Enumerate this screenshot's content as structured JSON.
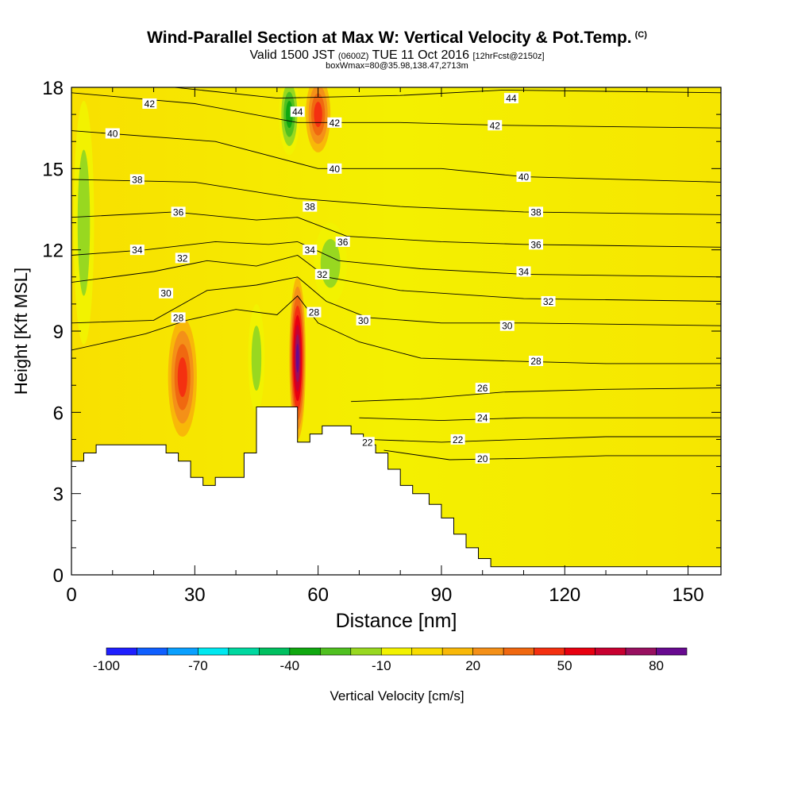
{
  "header": {
    "title": "Wind-Parallel Section at Max W: Vertical Velocity & Pot.Temp.",
    "copyright": "(C)",
    "valid_prefix": "Valid 1500 JST",
    "valid_utc": "(0600Z)",
    "valid_date": "TUE 11 Oct 2016",
    "forecast": "[12hrFcst@2150z]",
    "box_info": "boxWmax=80@35.98,138.47,2713m"
  },
  "chart_data": {
    "type": "heatmap",
    "xlabel": "Distance [nm]",
    "ylabel": "Height [Kft MSL]",
    "xlim": [
      0,
      158
    ],
    "ylim": [
      0,
      18
    ],
    "x_ticks": [
      0,
      30,
      60,
      90,
      120,
      150
    ],
    "y_ticks": [
      0,
      3,
      6,
      9,
      12,
      15,
      18
    ],
    "colorbar": {
      "label": "Vertical Velocity [cm/s]",
      "tick_labels": [
        -100,
        -70,
        -40,
        -10,
        20,
        50,
        80
      ],
      "levels": [
        -100,
        -90,
        -80,
        -70,
        -60,
        -50,
        -40,
        -30,
        -20,
        -10,
        0,
        10,
        20,
        30,
        40,
        50,
        60,
        70,
        80,
        90
      ],
      "colors": [
        "#1f1fff",
        "#0f5fff",
        "#0aa0ff",
        "#00e8f0",
        "#00d8a0",
        "#00c060",
        "#10a810",
        "#50c020",
        "#98d820",
        "#f2f200",
        "#f8dc00",
        "#f8b808",
        "#f49018",
        "#f06810",
        "#f43010",
        "#e80010",
        "#c80030",
        "#981060",
        "#680a90"
      ]
    },
    "terrain_kft": [
      [
        0,
        4.2
      ],
      [
        3,
        4.2
      ],
      [
        3,
        4.5
      ],
      [
        6,
        4.5
      ],
      [
        6,
        4.8
      ],
      [
        23,
        4.8
      ],
      [
        23,
        4.5
      ],
      [
        26,
        4.5
      ],
      [
        26,
        4.2
      ],
      [
        29,
        4.2
      ],
      [
        29,
        3.6
      ],
      [
        32,
        3.6
      ],
      [
        32,
        3.3
      ],
      [
        35,
        3.3
      ],
      [
        35,
        3.6
      ],
      [
        42,
        3.6
      ],
      [
        42,
        4.5
      ],
      [
        45,
        4.5
      ],
      [
        45,
        6.2
      ],
      [
        55,
        6.2
      ],
      [
        55,
        4.9
      ],
      [
        58,
        4.9
      ],
      [
        58,
        5.2
      ],
      [
        61,
        5.2
      ],
      [
        61,
        5.5
      ],
      [
        68,
        5.5
      ],
      [
        68,
        5.2
      ],
      [
        71,
        5.2
      ],
      [
        71,
        4.8
      ],
      [
        74,
        4.8
      ],
      [
        74,
        4.5
      ],
      [
        77,
        4.5
      ],
      [
        77,
        3.9
      ],
      [
        80,
        3.9
      ],
      [
        80,
        3.3
      ],
      [
        83,
        3.3
      ],
      [
        83,
        3.0
      ],
      [
        87,
        3.0
      ],
      [
        87,
        2.6
      ],
      [
        90,
        2.6
      ],
      [
        90,
        2.1
      ],
      [
        93,
        2.1
      ],
      [
        93,
        1.5
      ],
      [
        96,
        1.5
      ],
      [
        96,
        1.0
      ],
      [
        99,
        1.0
      ],
      [
        99,
        0.6
      ],
      [
        102,
        0.6
      ],
      [
        102,
        0.3
      ],
      [
        158,
        0.3
      ]
    ],
    "isentropes": [
      {
        "label": "20",
        "points": [
          [
            76,
            4.6
          ],
          [
            92,
            4.25
          ],
          [
            110,
            4.3
          ],
          [
            130,
            4.4
          ],
          [
            158,
            4.4
          ]
        ]
      },
      {
        "label": "22",
        "points": [
          [
            72,
            5.0
          ],
          [
            90,
            4.9
          ],
          [
            110,
            5.0
          ],
          [
            130,
            5.1
          ],
          [
            158,
            5.1
          ]
        ]
      },
      {
        "label": "24",
        "points": [
          [
            70,
            5.8
          ],
          [
            90,
            5.7
          ],
          [
            110,
            5.8
          ],
          [
            158,
            5.8
          ]
        ]
      },
      {
        "label": "26",
        "points": [
          [
            68,
            6.4
          ],
          [
            85,
            6.5
          ],
          [
            105,
            6.75
          ],
          [
            130,
            6.85
          ],
          [
            158,
            6.9
          ]
        ]
      },
      {
        "label": "28",
        "points": [
          [
            0,
            8.3
          ],
          [
            18,
            8.9
          ],
          [
            28,
            9.4
          ],
          [
            40,
            9.8
          ],
          [
            50,
            9.6
          ],
          [
            55,
            10.3
          ],
          [
            60,
            9.3
          ],
          [
            70,
            8.6
          ],
          [
            85,
            8.0
          ],
          [
            105,
            7.9
          ],
          [
            130,
            7.8
          ],
          [
            158,
            7.8
          ]
        ]
      },
      {
        "label": "30",
        "points": [
          [
            0,
            9.3
          ],
          [
            20,
            9.4
          ],
          [
            33,
            10.5
          ],
          [
            45,
            10.7
          ],
          [
            55,
            11.0
          ],
          [
            62,
            10.1
          ],
          [
            72,
            9.5
          ],
          [
            90,
            9.3
          ],
          [
            110,
            9.3
          ],
          [
            158,
            9.2
          ]
        ]
      },
      {
        "label": "32",
        "points": [
          [
            0,
            10.8
          ],
          [
            20,
            11.2
          ],
          [
            33,
            11.6
          ],
          [
            45,
            11.4
          ],
          [
            55,
            11.8
          ],
          [
            62,
            11.0
          ],
          [
            80,
            10.5
          ],
          [
            110,
            10.2
          ],
          [
            158,
            10.1
          ]
        ]
      },
      {
        "label": "34",
        "points": [
          [
            0,
            11.8
          ],
          [
            18,
            12.0
          ],
          [
            35,
            12.3
          ],
          [
            48,
            12.2
          ],
          [
            55,
            12.3
          ],
          [
            65,
            11.6
          ],
          [
            85,
            11.3
          ],
          [
            110,
            11.1
          ],
          [
            158,
            11.0
          ]
        ]
      },
      {
        "label": "36",
        "points": [
          [
            0,
            13.2
          ],
          [
            25,
            13.4
          ],
          [
            45,
            13.1
          ],
          [
            55,
            13.2
          ],
          [
            67,
            12.5
          ],
          [
            90,
            12.3
          ],
          [
            110,
            12.2
          ],
          [
            158,
            12.1
          ]
        ]
      },
      {
        "label": "38",
        "points": [
          [
            0,
            14.6
          ],
          [
            30,
            14.5
          ],
          [
            55,
            13.9
          ],
          [
            80,
            13.6
          ],
          [
            110,
            13.4
          ],
          [
            158,
            13.3
          ]
        ]
      },
      {
        "label": "40",
        "points": [
          [
            0,
            16.4
          ],
          [
            35,
            16.0
          ],
          [
            60,
            15.0
          ],
          [
            90,
            15.0
          ],
          [
            110,
            14.7
          ],
          [
            158,
            14.5
          ]
        ]
      },
      {
        "label": "42",
        "points": [
          [
            0,
            17.8
          ],
          [
            30,
            17.4
          ],
          [
            55,
            16.7
          ],
          [
            80,
            16.7
          ],
          [
            105,
            16.6
          ],
          [
            158,
            16.5
          ]
        ]
      },
      {
        "label": "44",
        "points": [
          [
            0,
            18.4
          ],
          [
            50,
            17.6
          ],
          [
            80,
            17.7
          ],
          [
            105,
            17.9
          ],
          [
            158,
            17.8
          ]
        ]
      }
    ],
    "isentrope_labels": [
      {
        "label": "42",
        "x": 19,
        "y": 17.4
      },
      {
        "label": "40",
        "x": 10,
        "y": 16.3
      },
      {
        "label": "38",
        "x": 16,
        "y": 14.6
      },
      {
        "label": "36",
        "x": 26,
        "y": 13.4
      },
      {
        "label": "34",
        "x": 16,
        "y": 12.0
      },
      {
        "label": "32",
        "x": 27,
        "y": 11.7
      },
      {
        "label": "30",
        "x": 23,
        "y": 10.4
      },
      {
        "label": "28",
        "x": 26,
        "y": 9.5
      },
      {
        "label": "44",
        "x": 55,
        "y": 17.1
      },
      {
        "label": "42",
        "x": 64,
        "y": 16.7
      },
      {
        "label": "40",
        "x": 64,
        "y": 15.0
      },
      {
        "label": "38",
        "x": 58,
        "y": 13.6
      },
      {
        "label": "36",
        "x": 66,
        "y": 12.3
      },
      {
        "label": "34",
        "x": 58,
        "y": 12.0
      },
      {
        "label": "32",
        "x": 61,
        "y": 11.1
      },
      {
        "label": "28",
        "x": 59,
        "y": 9.7
      },
      {
        "label": "30",
        "x": 71,
        "y": 9.4
      },
      {
        "label": "22",
        "x": 72,
        "y": 4.9
      },
      {
        "label": "44",
        "x": 107,
        "y": 17.6
      },
      {
        "label": "42",
        "x": 103,
        "y": 16.6
      },
      {
        "label": "40",
        "x": 110,
        "y": 14.7
      },
      {
        "label": "38",
        "x": 113,
        "y": 13.4
      },
      {
        "label": "36",
        "x": 113,
        "y": 12.2
      },
      {
        "label": "34",
        "x": 110,
        "y": 11.2
      },
      {
        "label": "32",
        "x": 116,
        "y": 10.1
      },
      {
        "label": "30",
        "x": 106,
        "y": 9.2
      },
      {
        "label": "28",
        "x": 113,
        "y": 7.9
      },
      {
        "label": "26",
        "x": 100,
        "y": 6.9
      },
      {
        "label": "24",
        "x": 100,
        "y": 5.8
      },
      {
        "label": "22",
        "x": 94,
        "y": 5.0
      },
      {
        "label": "20",
        "x": 100,
        "y": 4.3
      }
    ],
    "w_features": [
      {
        "type": "updraft",
        "x": 55,
        "y": 8.0,
        "rx": 2.0,
        "ry": 3.0,
        "w_cms": 80
      },
      {
        "type": "updraft",
        "x": 27,
        "y": 7.3,
        "rx": 3.5,
        "ry": 2.2,
        "w_cms": 45
      },
      {
        "type": "updraft",
        "x": 60,
        "y": 17.0,
        "rx": 3.0,
        "ry": 1.4,
        "w_cms": 40
      },
      {
        "type": "downdraft",
        "x": 53,
        "y": 17.0,
        "rx": 2.5,
        "ry": 1.5,
        "w_cms": -40
      },
      {
        "type": "downdraft",
        "x": 63,
        "y": 11.5,
        "rx": 4.0,
        "ry": 1.5,
        "w_cms": -25
      },
      {
        "type": "downdraft",
        "x": 3,
        "y": 13.0,
        "rx": 2.5,
        "ry": 4.5,
        "w_cms": -20
      },
      {
        "type": "downdraft",
        "x": 45,
        "y": 8.0,
        "rx": 2.0,
        "ry": 2.0,
        "w_cms": -25
      }
    ]
  }
}
